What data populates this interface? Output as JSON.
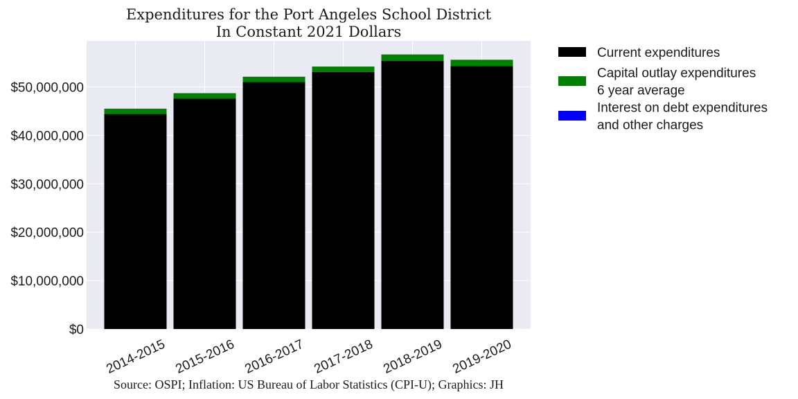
{
  "chart_data": {
    "type": "bar",
    "stacked": true,
    "title": [
      "Expenditures for the Port Angeles School District",
      "In Constant 2021 Dollars"
    ],
    "source": "Source: OSPI; Inflation: US Bureau of Labor Statistics (CPI-U); Graphics: JH",
    "categories": [
      "2014-2015",
      "2015-2016",
      "2016-2017",
      "2017-2018",
      "2018-2019",
      "2019-2020"
    ],
    "series": [
      {
        "name": "Current expenditures",
        "color": "#000000",
        "values": [
          44400000,
          47600000,
          51000000,
          53100000,
          55400000,
          54300000
        ]
      },
      {
        "name": "Capital outlay expenditures\n6 year average",
        "color": "#008000",
        "values": [
          1100000,
          1100000,
          1100000,
          1100000,
          1300000,
          1300000
        ]
      },
      {
        "name": "Interest on debt expenditures\nand other charges",
        "color": "#0000ff",
        "values": [
          0,
          0,
          0,
          0,
          0,
          0
        ]
      }
    ],
    "ylim": [
      0,
      59500000
    ],
    "yticks": [
      0,
      10000000,
      20000000,
      30000000,
      40000000,
      50000000
    ],
    "ytick_labels": [
      "$0",
      "$10,000,000",
      "$20,000,000",
      "$30,000,000",
      "$40,000,000",
      "$50,000,000"
    ],
    "xlabel": "",
    "ylabel": "",
    "grid": true,
    "legend_position": "outside-right",
    "xtick_rotation": 25,
    "background": "#eaeaf2"
  }
}
